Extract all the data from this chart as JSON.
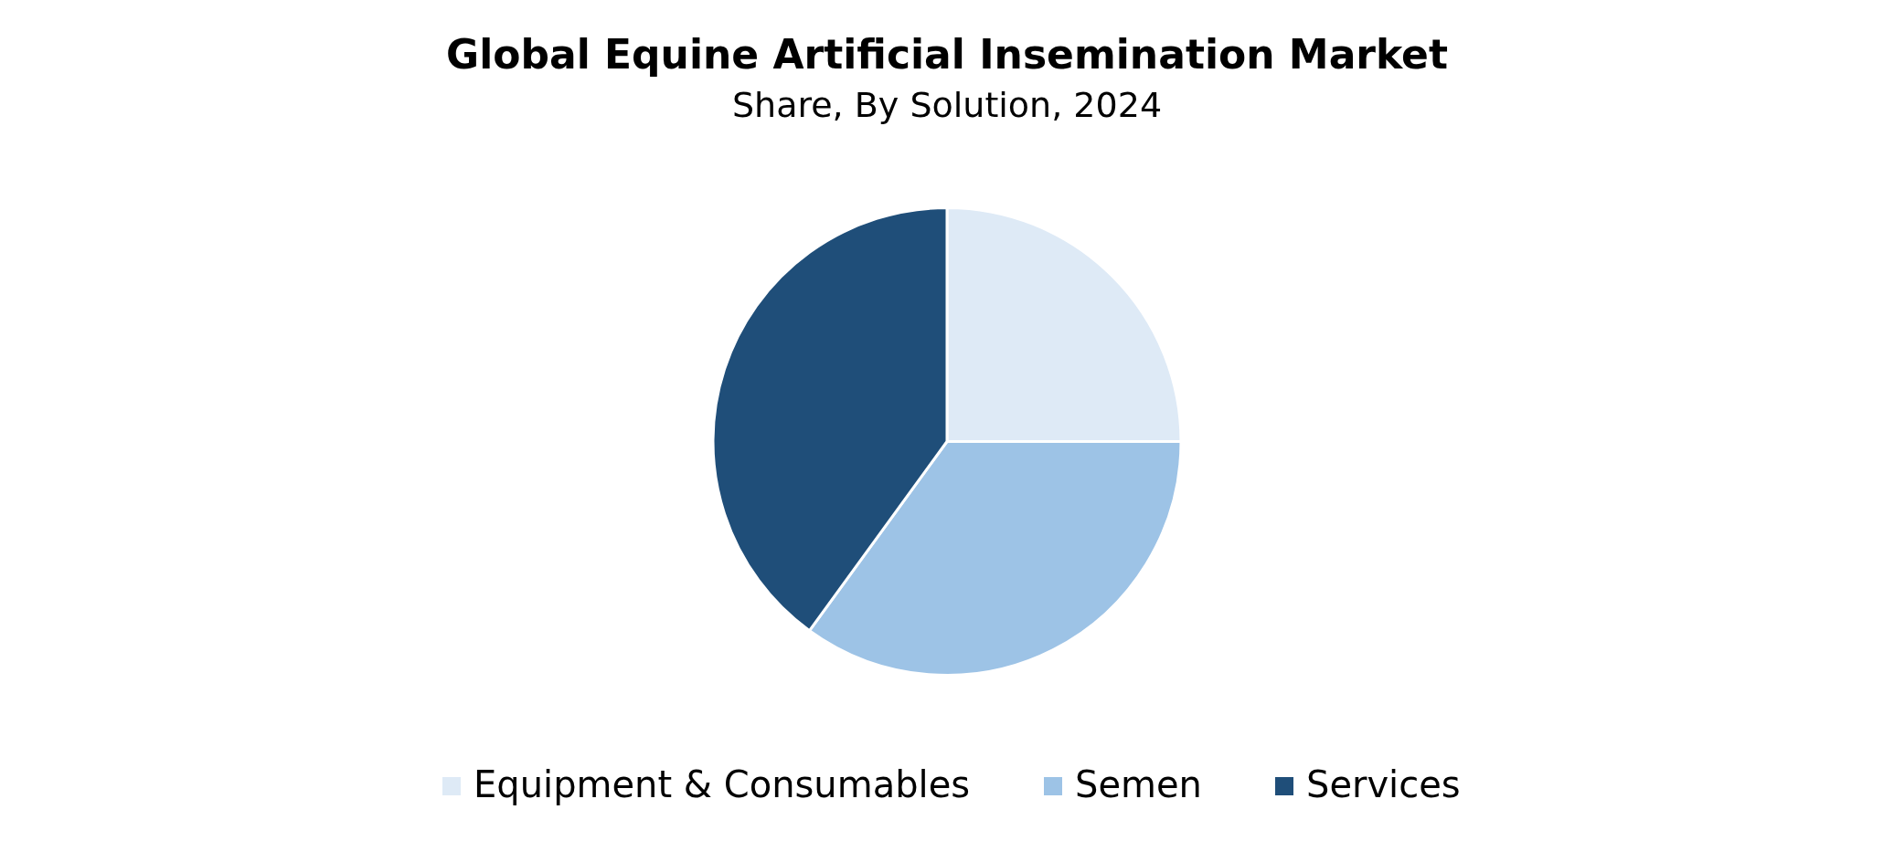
{
  "chart_data": {
    "type": "pie",
    "title": "Global Equine Artificial Insemination Market",
    "subtitle": "Share, By Solution, 2024",
    "categories": [
      "Equipment & Consumables",
      "Semen",
      "Services"
    ],
    "values": [
      25,
      35,
      40
    ],
    "colors": [
      "#deeaf6",
      "#9dc3e6",
      "#1f4e79"
    ],
    "legend": "bottom"
  }
}
